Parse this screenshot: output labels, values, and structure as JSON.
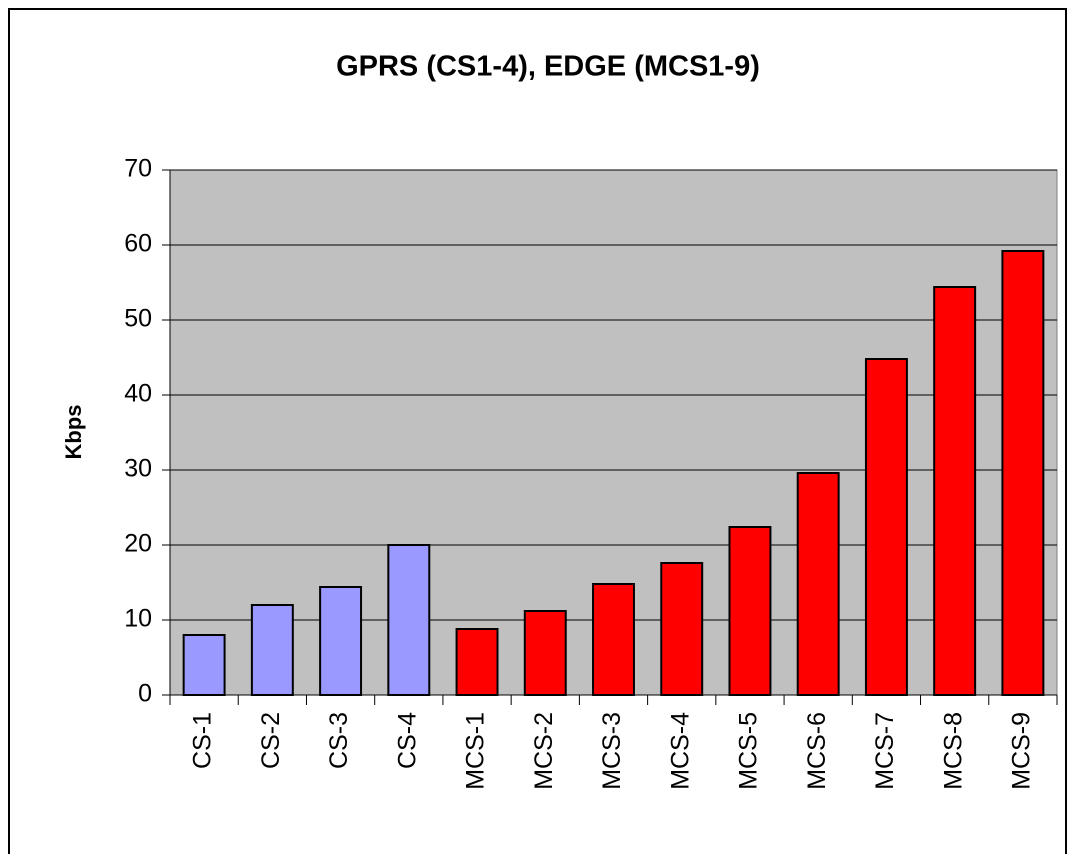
{
  "chart_data": {
    "type": "bar",
    "title": "GPRS (CS1-4), EDGE (MCS1-9)",
    "y_label": "Kbps",
    "categories": [
      "CS-1",
      "CS-2",
      "CS-3",
      "CS-4",
      "MCS-1",
      "MCS-2",
      "MCS-3",
      "MCS-4",
      "MCS-5",
      "MCS-6",
      "MCS-7",
      "MCS-8",
      "MCS-9"
    ],
    "values": [
      8,
      12,
      14.4,
      20,
      8.8,
      11.2,
      14.8,
      17.6,
      22.4,
      29.6,
      44.8,
      54.4,
      59.2
    ],
    "colors": [
      "#9999ff",
      "#9999ff",
      "#9999ff",
      "#9999ff",
      "#ff0000",
      "#ff0000",
      "#ff0000",
      "#ff0000",
      "#ff0000",
      "#ff0000",
      "#ff0000",
      "#ff0000",
      "#ff0000"
    ],
    "ylim": [
      0,
      70
    ],
    "yticks": [
      0,
      10,
      20,
      30,
      40,
      50,
      60,
      70
    ],
    "grid": true,
    "plot_background": "#c0c0c0"
  }
}
